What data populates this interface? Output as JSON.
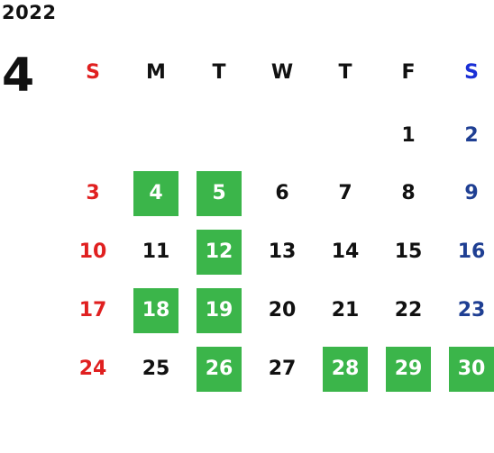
{
  "calendar": {
    "year": "2022",
    "month": "4",
    "weekdays": [
      "S",
      "M",
      "T",
      "W",
      "T",
      "F",
      "S"
    ],
    "highlight_color": "#3bb54a",
    "sunday_color": "#e02020",
    "saturday_color": "#1f3f93",
    "days": [
      {
        "label": "1",
        "highlighted": false
      },
      {
        "label": "2",
        "highlighted": false
      },
      {
        "label": "3",
        "highlighted": false
      },
      {
        "label": "4",
        "highlighted": true
      },
      {
        "label": "5",
        "highlighted": true
      },
      {
        "label": "6",
        "highlighted": false
      },
      {
        "label": "7",
        "highlighted": false
      },
      {
        "label": "8",
        "highlighted": false
      },
      {
        "label": "9",
        "highlighted": false
      },
      {
        "label": "10",
        "highlighted": false
      },
      {
        "label": "11",
        "highlighted": false
      },
      {
        "label": "12",
        "highlighted": true
      },
      {
        "label": "13",
        "highlighted": false
      },
      {
        "label": "14",
        "highlighted": false
      },
      {
        "label": "15",
        "highlighted": false
      },
      {
        "label": "16",
        "highlighted": false
      },
      {
        "label": "17",
        "highlighted": false
      },
      {
        "label": "18",
        "highlighted": true
      },
      {
        "label": "19",
        "highlighted": true
      },
      {
        "label": "20",
        "highlighted": false
      },
      {
        "label": "21",
        "highlighted": false
      },
      {
        "label": "22",
        "highlighted": false
      },
      {
        "label": "23",
        "highlighted": false
      },
      {
        "label": "24",
        "highlighted": false
      },
      {
        "label": "25",
        "highlighted": false
      },
      {
        "label": "26",
        "highlighted": true
      },
      {
        "label": "27",
        "highlighted": false
      },
      {
        "label": "28",
        "highlighted": true
      },
      {
        "label": "29",
        "highlighted": true
      },
      {
        "label": "30",
        "highlighted": true
      }
    ]
  }
}
